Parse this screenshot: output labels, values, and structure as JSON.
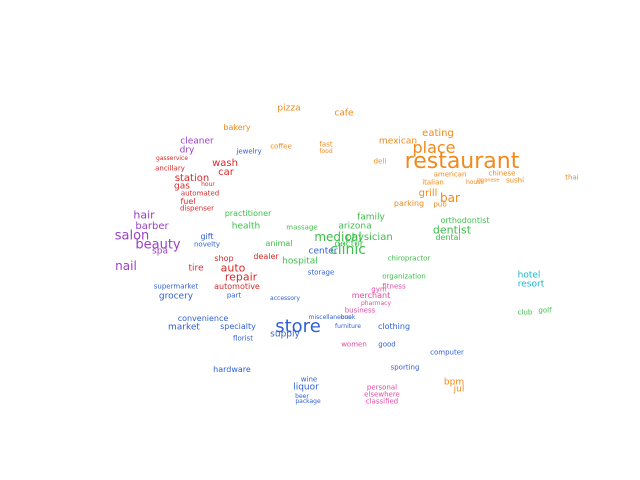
{
  "colors": {
    "orange": "#f2891a",
    "red": "#d82a2a",
    "purple": "#9b3fc8",
    "blue": "#2f5fd6",
    "green": "#3cbf4a",
    "cyan": "#17b7c9",
    "pink": "#e14aa3"
  },
  "words": [
    {
      "text": "restaurant",
      "color": "orange"
    },
    {
      "text": "place",
      "color": "orange"
    },
    {
      "text": "eating",
      "color": "orange"
    },
    {
      "text": "mexican",
      "color": "orange"
    },
    {
      "text": "pizza",
      "color": "orange"
    },
    {
      "text": "cafe",
      "color": "orange"
    },
    {
      "text": "coffee",
      "color": "orange"
    },
    {
      "text": "fast",
      "color": "orange"
    },
    {
      "text": "food",
      "color": "orange"
    },
    {
      "text": "bar",
      "color": "orange"
    },
    {
      "text": "grill",
      "color": "orange"
    },
    {
      "text": "pub",
      "color": "orange"
    },
    {
      "text": "american",
      "color": "orange"
    },
    {
      "text": "chinese",
      "color": "orange"
    },
    {
      "text": "sushi",
      "color": "orange"
    },
    {
      "text": "thai",
      "color": "orange"
    },
    {
      "text": "italian",
      "color": "orange"
    },
    {
      "text": "house",
      "color": "orange"
    },
    {
      "text": "japanese",
      "color": "orange"
    },
    {
      "text": "bakery",
      "color": "orange"
    },
    {
      "text": "deli",
      "color": "orange"
    },
    {
      "text": "station",
      "color": "red"
    },
    {
      "text": "gas",
      "color": "red"
    },
    {
      "text": "wash",
      "color": "red"
    },
    {
      "text": "car",
      "color": "red"
    },
    {
      "text": "repair",
      "color": "red"
    },
    {
      "text": "auto",
      "color": "red"
    },
    {
      "text": "tire",
      "color": "red"
    },
    {
      "text": "fuel",
      "color": "red"
    },
    {
      "text": "automated",
      "color": "red"
    },
    {
      "text": "dispenser",
      "color": "red"
    },
    {
      "text": "gasservice",
      "color": "red"
    },
    {
      "text": "ancillary",
      "color": "red"
    },
    {
      "text": "shop",
      "color": "red"
    },
    {
      "text": "automotive",
      "color": "red"
    },
    {
      "text": "dealer",
      "color": "red"
    },
    {
      "text": "hour",
      "color": "red"
    },
    {
      "text": "salon",
      "color": "purple"
    },
    {
      "text": "beauty",
      "color": "purple"
    },
    {
      "text": "nail",
      "color": "purple"
    },
    {
      "text": "hair",
      "color": "purple"
    },
    {
      "text": "barber",
      "color": "purple"
    },
    {
      "text": "spa",
      "color": "purple"
    },
    {
      "text": "cleaner",
      "color": "purple"
    },
    {
      "text": "dry",
      "color": "purple"
    },
    {
      "text": "store",
      "color": "blue"
    },
    {
      "text": "supply",
      "color": "blue"
    },
    {
      "text": "grocery",
      "color": "blue"
    },
    {
      "text": "supermarket",
      "color": "blue"
    },
    {
      "text": "market",
      "color": "blue"
    },
    {
      "text": "convenience",
      "color": "blue"
    },
    {
      "text": "specialty",
      "color": "blue"
    },
    {
      "text": "hardware",
      "color": "blue"
    },
    {
      "text": "liquor",
      "color": "blue"
    },
    {
      "text": "wine",
      "color": "blue"
    },
    {
      "text": "beer",
      "color": "blue"
    },
    {
      "text": "package",
      "color": "blue"
    },
    {
      "text": "florist",
      "color": "blue"
    },
    {
      "text": "part",
      "color": "blue"
    },
    {
      "text": "jewelry",
      "color": "blue"
    },
    {
      "text": "clothing",
      "color": "blue"
    },
    {
      "text": "miscellaneous",
      "color": "blue"
    },
    {
      "text": "furniture",
      "color": "blue"
    },
    {
      "text": "sporting",
      "color": "blue"
    },
    {
      "text": "good",
      "color": "blue"
    },
    {
      "text": "accessory",
      "color": "blue"
    },
    {
      "text": "gift",
      "color": "blue"
    },
    {
      "text": "novelty",
      "color": "blue"
    },
    {
      "text": "book",
      "color": "blue"
    },
    {
      "text": "center",
      "color": "blue"
    },
    {
      "text": "storage",
      "color": "blue"
    },
    {
      "text": "computer",
      "color": "blue"
    },
    {
      "text": "medical",
      "color": "green"
    },
    {
      "text": "clinic",
      "color": "green"
    },
    {
      "text": "physician",
      "color": "green"
    },
    {
      "text": "doctor",
      "color": "green"
    },
    {
      "text": "dentist",
      "color": "green"
    },
    {
      "text": "orthodontist",
      "color": "green"
    },
    {
      "text": "dental",
      "color": "green"
    },
    {
      "text": "health",
      "color": "green"
    },
    {
      "text": "practitioner",
      "color": "green"
    },
    {
      "text": "hospital",
      "color": "green"
    },
    {
      "text": "chiropractor",
      "color": "green"
    },
    {
      "text": "family",
      "color": "green"
    },
    {
      "text": "arizona",
      "color": "green"
    },
    {
      "text": "animal",
      "color": "green"
    },
    {
      "text": "massage",
      "color": "green"
    },
    {
      "text": "organization",
      "color": "green"
    },
    {
      "text": "parking",
      "color": "orange"
    },
    {
      "text": "gym",
      "color": "pink"
    },
    {
      "text": "fitness",
      "color": "pink"
    },
    {
      "text": "pharmacy",
      "color": "pink"
    },
    {
      "text": "merchant",
      "color": "pink"
    },
    {
      "text": "business",
      "color": "pink"
    },
    {
      "text": "personal",
      "color": "pink"
    },
    {
      "text": "elsewhere",
      "color": "pink"
    },
    {
      "text": "classified",
      "color": "pink"
    },
    {
      "text": "women",
      "color": "pink"
    },
    {
      "text": "bpm",
      "color": "orange"
    },
    {
      "text": "jul",
      "color": "orange"
    },
    {
      "text": "hotel",
      "color": "cyan"
    },
    {
      "text": "resort",
      "color": "cyan"
    },
    {
      "text": "club",
      "color": "green"
    },
    {
      "text": "golf",
      "color": "green"
    }
  ]
}
